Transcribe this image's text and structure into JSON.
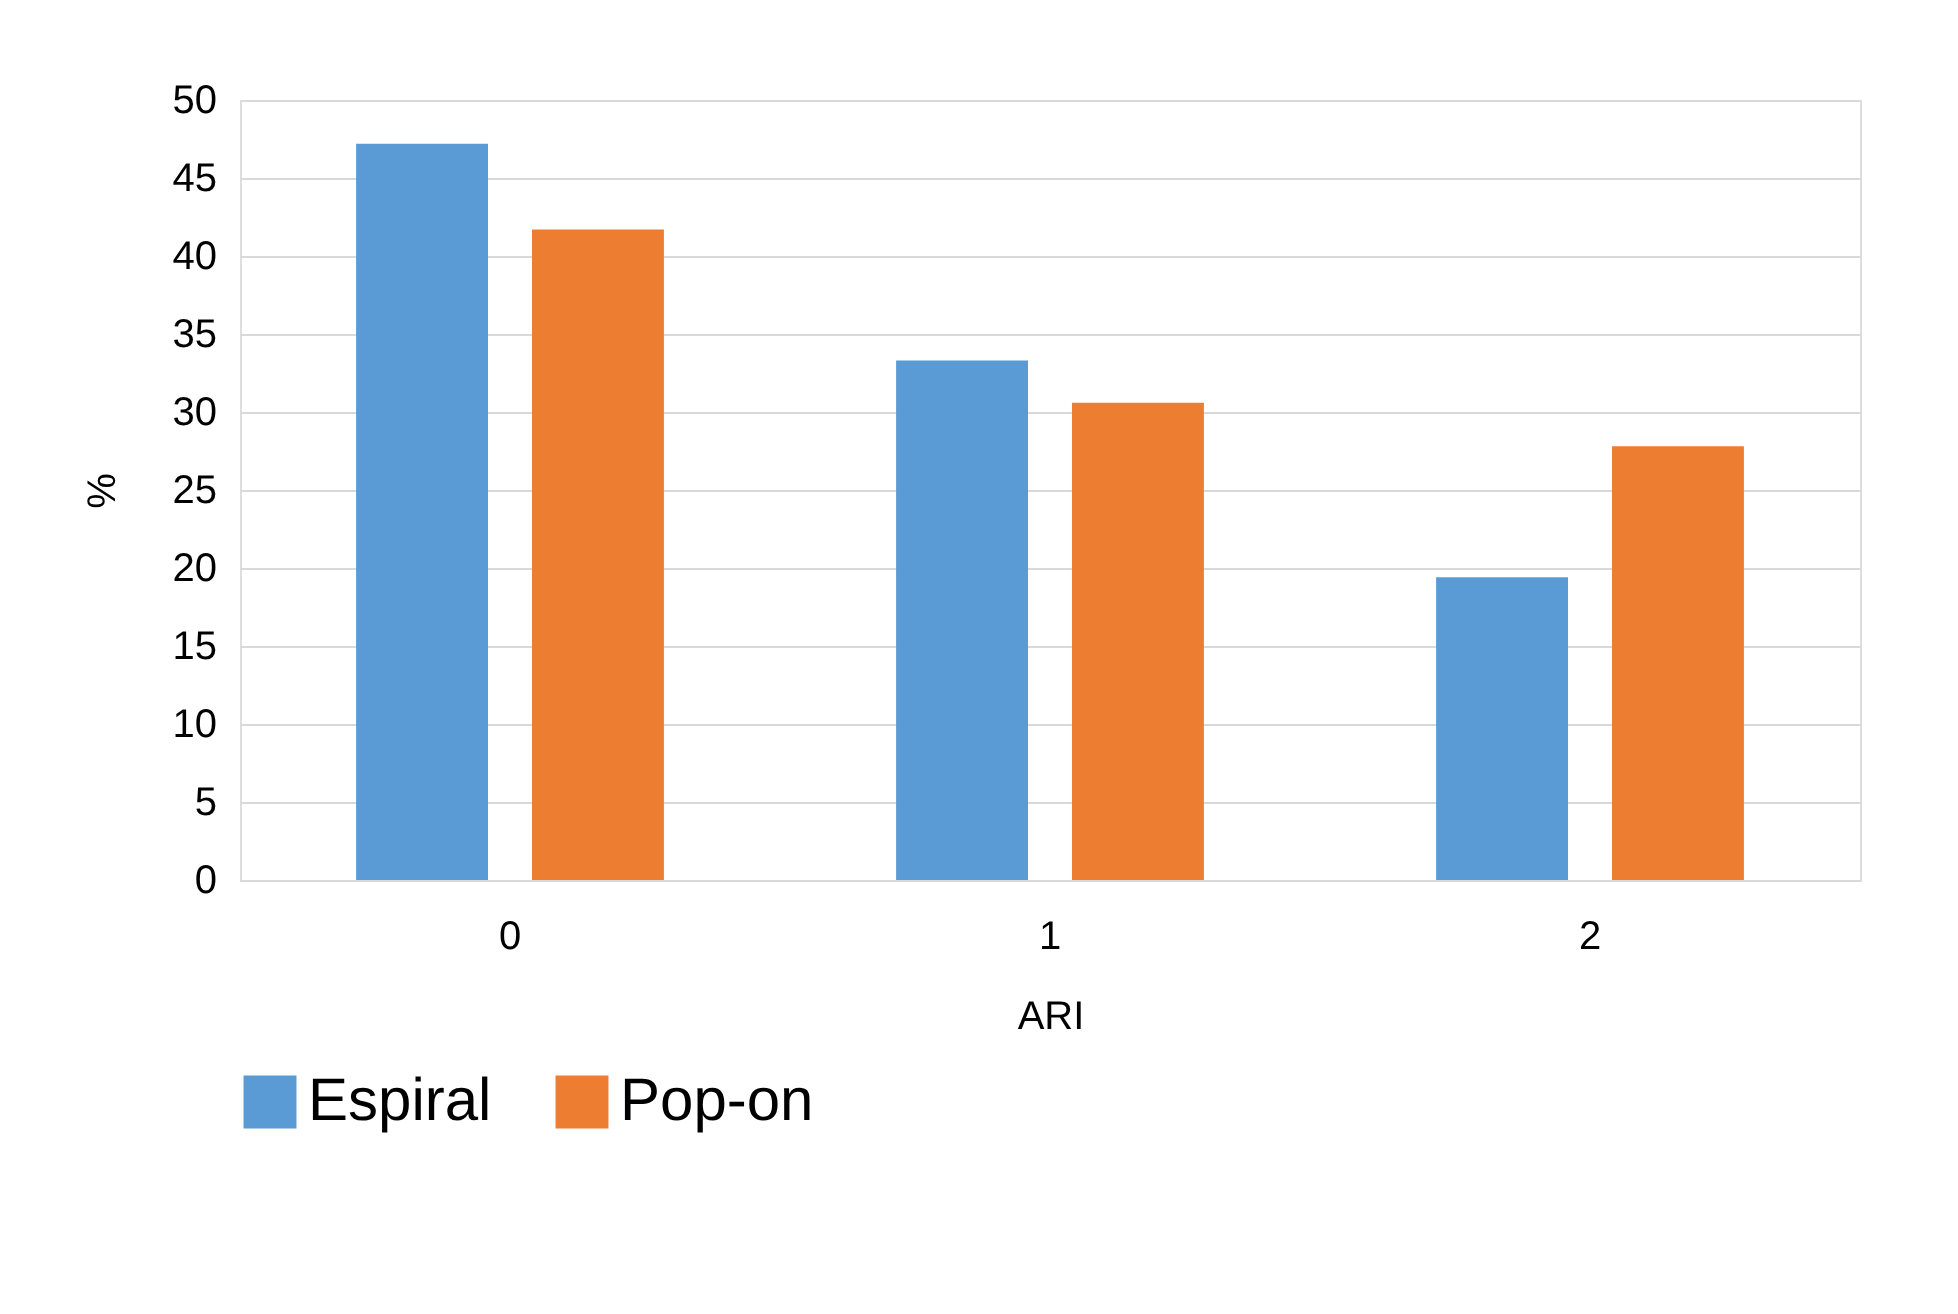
{
  "chart_data": {
    "type": "bar",
    "xlabel": "ARI",
    "ylabel": "%",
    "categories": [
      "0",
      "1",
      "2"
    ],
    "series": [
      {
        "name": "Espiral",
        "color": "#5b9bd5",
        "values": [
          47.2,
          33.3,
          19.4
        ]
      },
      {
        "name": "Pop-on",
        "color": "#ed7d31",
        "values": [
          41.7,
          30.6,
          27.8
        ]
      }
    ],
    "ylim": [
      0,
      50
    ],
    "yticks": [
      0,
      5,
      10,
      15,
      20,
      25,
      30,
      35,
      40,
      45,
      50
    ],
    "grid": "y",
    "legend": "bottom"
  }
}
